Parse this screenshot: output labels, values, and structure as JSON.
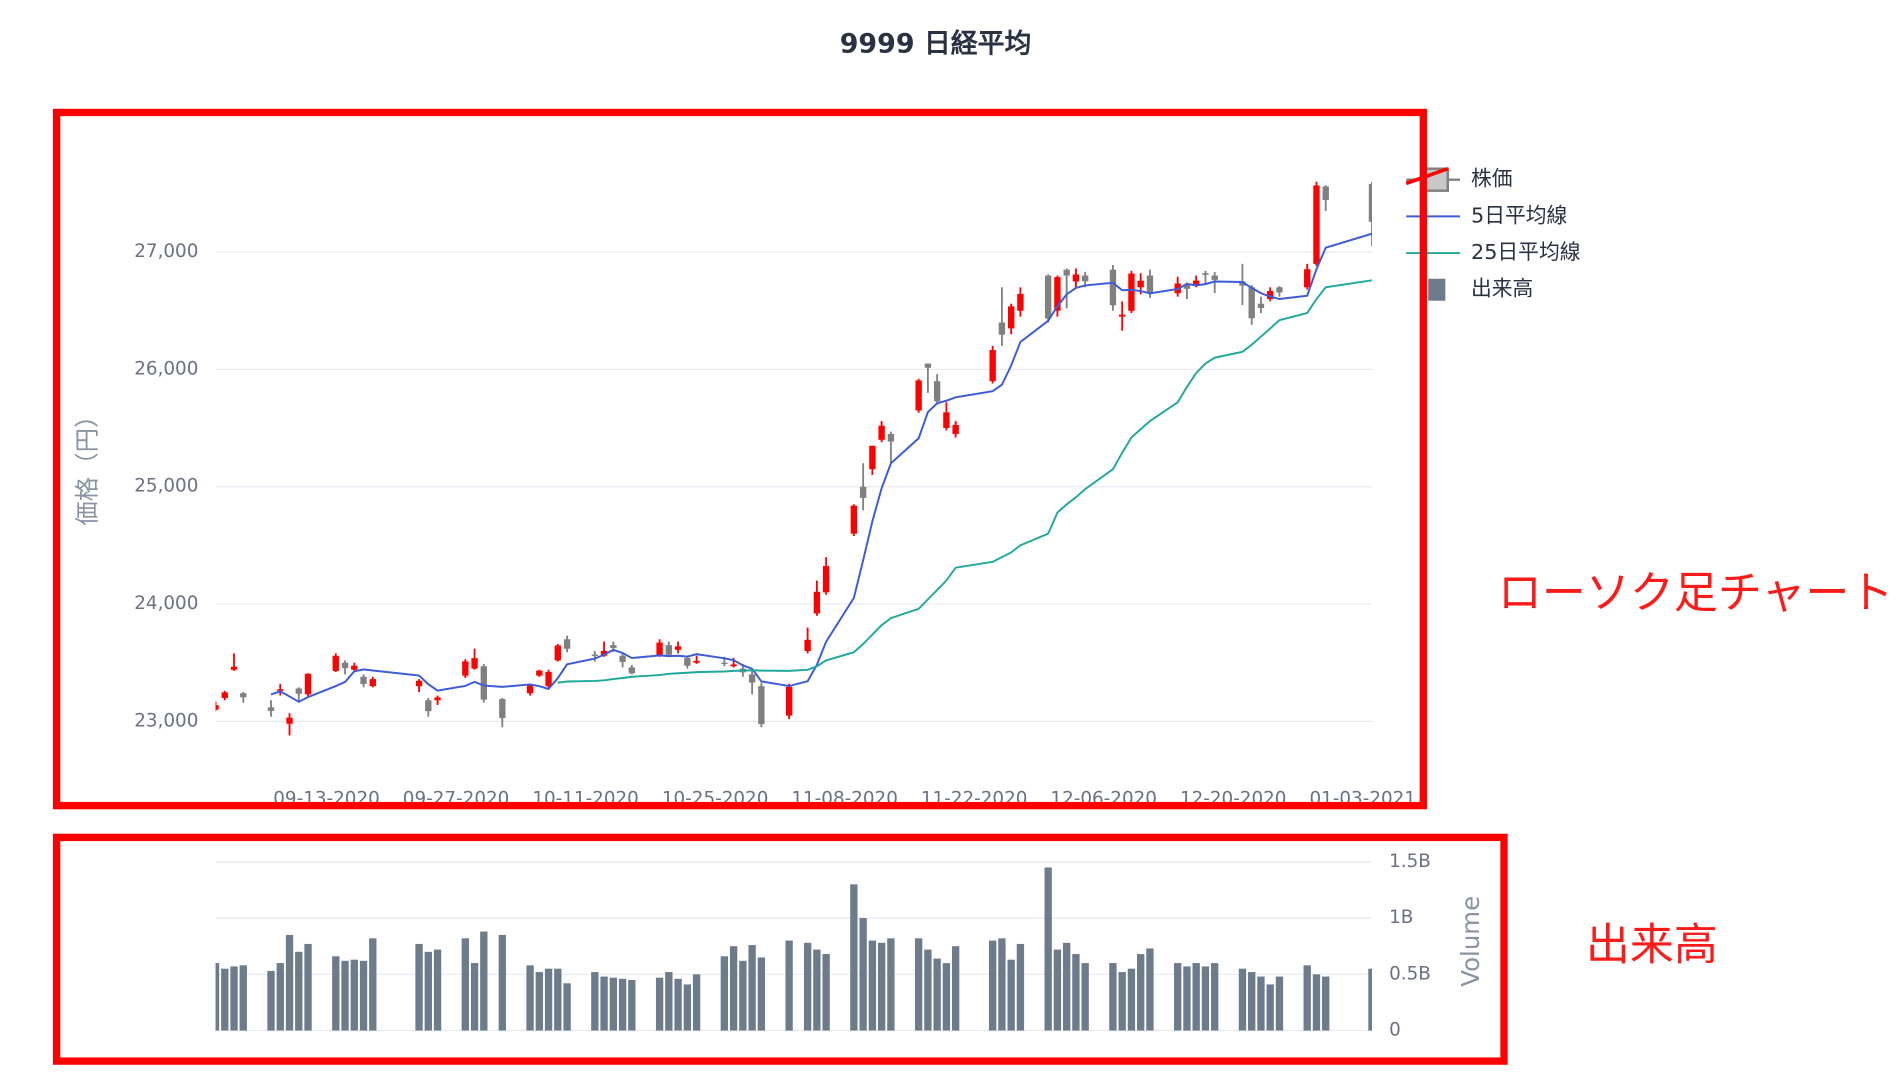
{
  "chart_data": [
    {
      "type": "candlestick",
      "title": "9999 日経平均",
      "name": "株価",
      "y_label": "価格（円）",
      "increasing_color": "#ff0000",
      "decreasing_color": "#808080",
      "x": [
        "2020-09-01",
        "2020-09-02",
        "2020-09-03",
        "2020-09-04",
        "2020-09-07",
        "2020-09-08",
        "2020-09-09",
        "2020-09-10",
        "2020-09-11",
        "2020-09-14",
        "2020-09-15",
        "2020-09-16",
        "2020-09-17",
        "2020-09-18",
        "2020-09-23",
        "2020-09-24",
        "2020-09-25",
        "2020-09-28",
        "2020-09-29",
        "2020-09-30",
        "2020-10-02",
        "2020-10-05",
        "2020-10-06",
        "2020-10-07",
        "2020-10-08",
        "2020-10-09",
        "2020-10-12",
        "2020-10-13",
        "2020-10-14",
        "2020-10-15",
        "2020-10-16",
        "2020-10-19",
        "2020-10-20",
        "2020-10-21",
        "2020-10-22",
        "2020-10-23",
        "2020-10-26",
        "2020-10-27",
        "2020-10-28",
        "2020-10-29",
        "2020-10-30",
        "2020-11-02",
        "2020-11-04",
        "2020-11-05",
        "2020-11-06",
        "2020-11-09",
        "2020-11-10",
        "2020-11-11",
        "2020-11-12",
        "2020-11-13",
        "2020-11-16",
        "2020-11-17",
        "2020-11-18",
        "2020-11-19",
        "2020-11-20",
        "2020-11-24",
        "2020-11-25",
        "2020-11-26",
        "2020-11-27",
        "2020-11-30",
        "2020-12-01",
        "2020-12-02",
        "2020-12-03",
        "2020-12-04",
        "2020-12-07",
        "2020-12-08",
        "2020-12-09",
        "2020-12-10",
        "2020-12-11",
        "2020-12-14",
        "2020-12-15",
        "2020-12-16",
        "2020-12-17",
        "2020-12-18",
        "2020-12-21",
        "2020-12-22",
        "2020-12-23",
        "2020-12-24",
        "2020-12-25",
        "2020-12-28",
        "2020-12-29",
        "2020-12-30",
        "2021-01-04"
      ],
      "open": [
        23100,
        23200,
        23440,
        23240,
        23120,
        23260,
        22980,
        23280,
        23230,
        23430,
        23500,
        23440,
        23380,
        23300,
        23300,
        23180,
        23180,
        23390,
        23450,
        23470,
        23190,
        23240,
        23390,
        23300,
        23520,
        23700,
        23570,
        23560,
        23650,
        23560,
        23460,
        23560,
        23650,
        23610,
        23540,
        23500,
        23500,
        23470,
        23450,
        23400,
        23300,
        23050,
        23600,
        23920,
        24100,
        24600,
        25000,
        25150,
        25400,
        25450,
        25650,
        26050,
        25900,
        25500,
        25450,
        25900,
        26400,
        26350,
        26500,
        26800,
        26500,
        26850,
        26750,
        26800,
        26850,
        26450,
        26500,
        26700,
        26800,
        26650,
        26720,
        26720,
        26820,
        26800,
        26750,
        26700,
        26560,
        26600,
        26700,
        26700,
        26900,
        27560,
        27580
      ],
      "high": [
        23170,
        23260,
        23580,
        23250,
        23180,
        23320,
        23070,
        23290,
        23410,
        23580,
        23520,
        23500,
        23400,
        23380,
        23360,
        23200,
        23220,
        23530,
        23620,
        23490,
        23200,
        23320,
        23440,
        23440,
        23660,
        23730,
        23600,
        23680,
        23680,
        23590,
        23480,
        23700,
        23680,
        23680,
        23560,
        23560,
        23550,
        23540,
        23490,
        23430,
        23330,
        23320,
        23800,
        24200,
        24400,
        24850,
        25200,
        25350,
        25560,
        25470,
        25920,
        26050,
        25960,
        25720,
        25560,
        26200,
        26700,
        26560,
        26700,
        26810,
        26800,
        26860,
        26860,
        26830,
        26890,
        26580,
        26840,
        26820,
        26850,
        26790,
        26740,
        26800,
        26840,
        26830,
        26900,
        26720,
        26620,
        26700,
        26710,
        26900,
        27600,
        27570,
        27600
      ],
      "low": [
        23090,
        23180,
        23430,
        23160,
        23040,
        23220,
        22880,
        23160,
        23210,
        23420,
        23400,
        23430,
        23290,
        23290,
        23250,
        23040,
        23140,
        23370,
        23440,
        23160,
        22950,
        23220,
        23380,
        23280,
        23510,
        23590,
        23510,
        23550,
        23590,
        23460,
        23400,
        23550,
        23560,
        23580,
        23450,
        23490,
        23470,
        23460,
        23380,
        23230,
        22950,
        23020,
        23580,
        23900,
        24080,
        24580,
        24800,
        25100,
        25380,
        25200,
        25630,
        25800,
        25700,
        25480,
        25420,
        25880,
        26200,
        26300,
        26450,
        26400,
        26450,
        26520,
        26700,
        26700,
        26500,
        26330,
        26480,
        26640,
        26610,
        26620,
        26600,
        26700,
        26720,
        26650,
        26550,
        26380,
        26480,
        26580,
        26620,
        26680,
        26880,
        27350,
        27050
      ],
      "close": [
        23138,
        23247,
        23465,
        23205,
        23089,
        23274,
        23032,
        23235,
        23406,
        23559,
        23454,
        23475,
        23319,
        23360,
        23346,
        23087,
        23204,
        23511,
        23539,
        23185,
        23029,
        23312,
        23433,
        23422,
        23647,
        23619,
        23558,
        23601,
        23626,
        23507,
        23410,
        23671,
        23567,
        23639,
        23474,
        23516,
        23494,
        23485,
        23418,
        23331,
        22977,
        23295,
        23695,
        24105,
        24325,
        24839,
        24905,
        25349,
        25520,
        25385,
        25906,
        26014,
        25728,
        25634,
        25527,
        26165,
        26296,
        26537,
        26644,
        26433,
        26787,
        26800,
        26809,
        26751,
        26547,
        26467,
        26817,
        26756,
        26652,
        26732,
        26687,
        26757,
        26806,
        26763,
        26714,
        26436,
        26524,
        26668,
        26656,
        26854,
        27568,
        27444,
        27258
      ],
      "lines": [
        {
          "name": "5日平均線",
          "color": "#3b5bdb",
          "values": [
            null,
            null,
            null,
            null,
            23229,
            23256,
            23213,
            23167,
            23207,
            23301,
            23337,
            23426,
            23443,
            23433,
            23391,
            23317,
            23263,
            23302,
            23337,
            23305,
            23294,
            23315,
            23300,
            23276,
            23369,
            23487,
            23536,
            23569,
            23610,
            23582,
            23540,
            23563,
            23556,
            23559,
            23552,
            23573,
            23538,
            23522,
            23477,
            23449,
            23341,
            23301,
            23343,
            23481,
            23679,
            24052,
            24374,
            24705,
            24988,
            25200,
            25413,
            25635,
            25711,
            25733,
            25762,
            25814,
            25870,
            26032,
            26234,
            26415,
            26539,
            26640,
            26695,
            26716,
            26739,
            26675,
            26678,
            26668,
            26648,
            26685,
            26729,
            26717,
            26727,
            26749,
            26745,
            26695,
            26649,
            26621,
            26600,
            26628,
            26854,
            27038,
            27156
          ]
        },
        {
          "name": "25日平均線",
          "color": "#20a99a",
          "values": [
            null,
            null,
            null,
            null,
            null,
            null,
            null,
            null,
            null,
            null,
            null,
            null,
            null,
            null,
            null,
            null,
            null,
            null,
            null,
            null,
            null,
            null,
            null,
            null,
            23330,
            23340,
            23345,
            23350,
            23360,
            23370,
            23380,
            23395,
            23405,
            23410,
            23415,
            23420,
            23425,
            23430,
            23432,
            23435,
            23432,
            23430,
            23440,
            23470,
            23520,
            23590,
            23660,
            23740,
            23820,
            23880,
            23960,
            24040,
            24120,
            24200,
            24310,
            24360,
            24400,
            24440,
            24500,
            24600,
            24780,
            24850,
            24910,
            24980,
            25150,
            25290,
            25420,
            25490,
            25560,
            25720,
            25850,
            25970,
            26050,
            26100,
            26150,
            26210,
            26280,
            26350,
            26420,
            26480,
            26600,
            26700,
            26760
          ]
        }
      ],
      "xlim": [
        "2020-09-01",
        "2021-01-04"
      ],
      "xticks": [
        {
          "value": "2020-09-13",
          "label": "09-13-2020"
        },
        {
          "value": "2020-09-27",
          "label": "09-27-2020"
        },
        {
          "value": "2020-10-11",
          "label": "10-11-2020"
        },
        {
          "value": "2020-10-25",
          "label": "10-25-2020"
        },
        {
          "value": "2020-11-08",
          "label": "11-08-2020"
        },
        {
          "value": "2020-11-22",
          "label": "11-22-2020"
        },
        {
          "value": "2020-12-06",
          "label": "12-06-2020"
        },
        {
          "value": "2020-12-20",
          "label": "12-20-2020"
        },
        {
          "value": "2021-01-03",
          "label": "01-03-2021"
        }
      ],
      "ylim": [
        22480,
        27690
      ],
      "yticks": [
        {
          "value": 23000,
          "label": "23,000"
        },
        {
          "value": 24000,
          "label": "24,000"
        },
        {
          "value": 25000,
          "label": "25,000"
        },
        {
          "value": 26000,
          "label": "26,000"
        },
        {
          "value": 27000,
          "label": "27,000"
        }
      ],
      "grid": true
    },
    {
      "type": "bar",
      "name": "出来高",
      "y_label": "Volume",
      "color": "#6e7b8b",
      "x": [
        "2020-09-01",
        "2020-09-02",
        "2020-09-03",
        "2020-09-04",
        "2020-09-07",
        "2020-09-08",
        "2020-09-09",
        "2020-09-10",
        "2020-09-11",
        "2020-09-14",
        "2020-09-15",
        "2020-09-16",
        "2020-09-17",
        "2020-09-18",
        "2020-09-23",
        "2020-09-24",
        "2020-09-25",
        "2020-09-28",
        "2020-09-29",
        "2020-09-30",
        "2020-10-02",
        "2020-10-05",
        "2020-10-06",
        "2020-10-07",
        "2020-10-08",
        "2020-10-09",
        "2020-10-12",
        "2020-10-13",
        "2020-10-14",
        "2020-10-15",
        "2020-10-16",
        "2020-10-19",
        "2020-10-20",
        "2020-10-21",
        "2020-10-22",
        "2020-10-23",
        "2020-10-26",
        "2020-10-27",
        "2020-10-28",
        "2020-10-29",
        "2020-10-30",
        "2020-11-02",
        "2020-11-04",
        "2020-11-05",
        "2020-11-06",
        "2020-11-09",
        "2020-11-10",
        "2020-11-11",
        "2020-11-12",
        "2020-11-13",
        "2020-11-16",
        "2020-11-17",
        "2020-11-18",
        "2020-11-19",
        "2020-11-20",
        "2020-11-24",
        "2020-11-25",
        "2020-11-26",
        "2020-11-27",
        "2020-11-30",
        "2020-12-01",
        "2020-12-02",
        "2020-12-03",
        "2020-12-04",
        "2020-12-07",
        "2020-12-08",
        "2020-12-09",
        "2020-12-10",
        "2020-12-11",
        "2020-12-14",
        "2020-12-15",
        "2020-12-16",
        "2020-12-17",
        "2020-12-18",
        "2020-12-21",
        "2020-12-22",
        "2020-12-23",
        "2020-12-24",
        "2020-12-25",
        "2020-12-28",
        "2020-12-29",
        "2020-12-30",
        "2021-01-04"
      ],
      "values": [
        600000000,
        550000000,
        570000000,
        580000000,
        530000000,
        600000000,
        850000000,
        700000000,
        770000000,
        660000000,
        620000000,
        630000000,
        620000000,
        820000000,
        770000000,
        700000000,
        720000000,
        820000000,
        600000000,
        880000000,
        850000000,
        580000000,
        520000000,
        550000000,
        550000000,
        420000000,
        520000000,
        480000000,
        470000000,
        460000000,
        450000000,
        470000000,
        520000000,
        460000000,
        410000000,
        500000000,
        660000000,
        750000000,
        620000000,
        760000000,
        650000000,
        800000000,
        780000000,
        720000000,
        680000000,
        1300000000,
        1000000000,
        800000000,
        780000000,
        820000000,
        820000000,
        720000000,
        640000000,
        600000000,
        750000000,
        800000000,
        820000000,
        630000000,
        770000000,
        1450000000,
        720000000,
        780000000,
        680000000,
        600000000,
        600000000,
        520000000,
        550000000,
        680000000,
        730000000,
        600000000,
        570000000,
        600000000,
        570000000,
        600000000,
        550000000,
        520000000,
        480000000,
        410000000,
        480000000,
        580000000,
        500000000,
        480000000,
        550000000
      ],
      "xlim": [
        "2020-09-01",
        "2021-01-04"
      ],
      "ylim": [
        0,
        1500000000
      ],
      "yticks": [
        0,
        {
          "value": 500000000,
          "label": "0.5B"
        },
        {
          "value": 1000000000,
          "label": "1B"
        },
        {
          "value": 1500000000,
          "label": "1.5B"
        }
      ],
      "grid": true
    }
  ],
  "annotations": [
    {
      "text": "ローソク足チャート"
    },
    {
      "text": "出来高"
    }
  ]
}
